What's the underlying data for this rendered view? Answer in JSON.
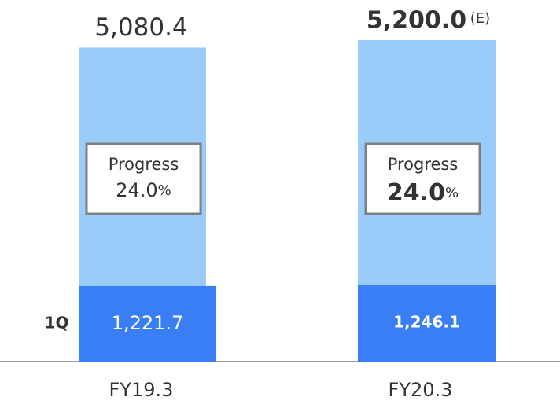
{
  "chart_data": {
    "type": "bar",
    "categories": [
      "FY19.3",
      "FY20.3"
    ],
    "series": [
      {
        "color": "#99ccf8",
        "values": [
          5080.4,
          5200.0
        ],
        "value_labels": [
          "5,080.4",
          "5,200.0"
        ]
      },
      {
        "name": "1Q",
        "color": "#3a7ef5",
        "values": [
          1221.7,
          1246.1
        ],
        "value_labels": [
          "1,221.7",
          "1,246.1"
        ]
      }
    ],
    "annotations": [
      null,
      "(E)"
    ],
    "progress": {
      "label": "Progress",
      "values": [
        24.0,
        24.0
      ],
      "value_labels": [
        "24.0",
        "24.0"
      ],
      "unit": "%"
    }
  }
}
